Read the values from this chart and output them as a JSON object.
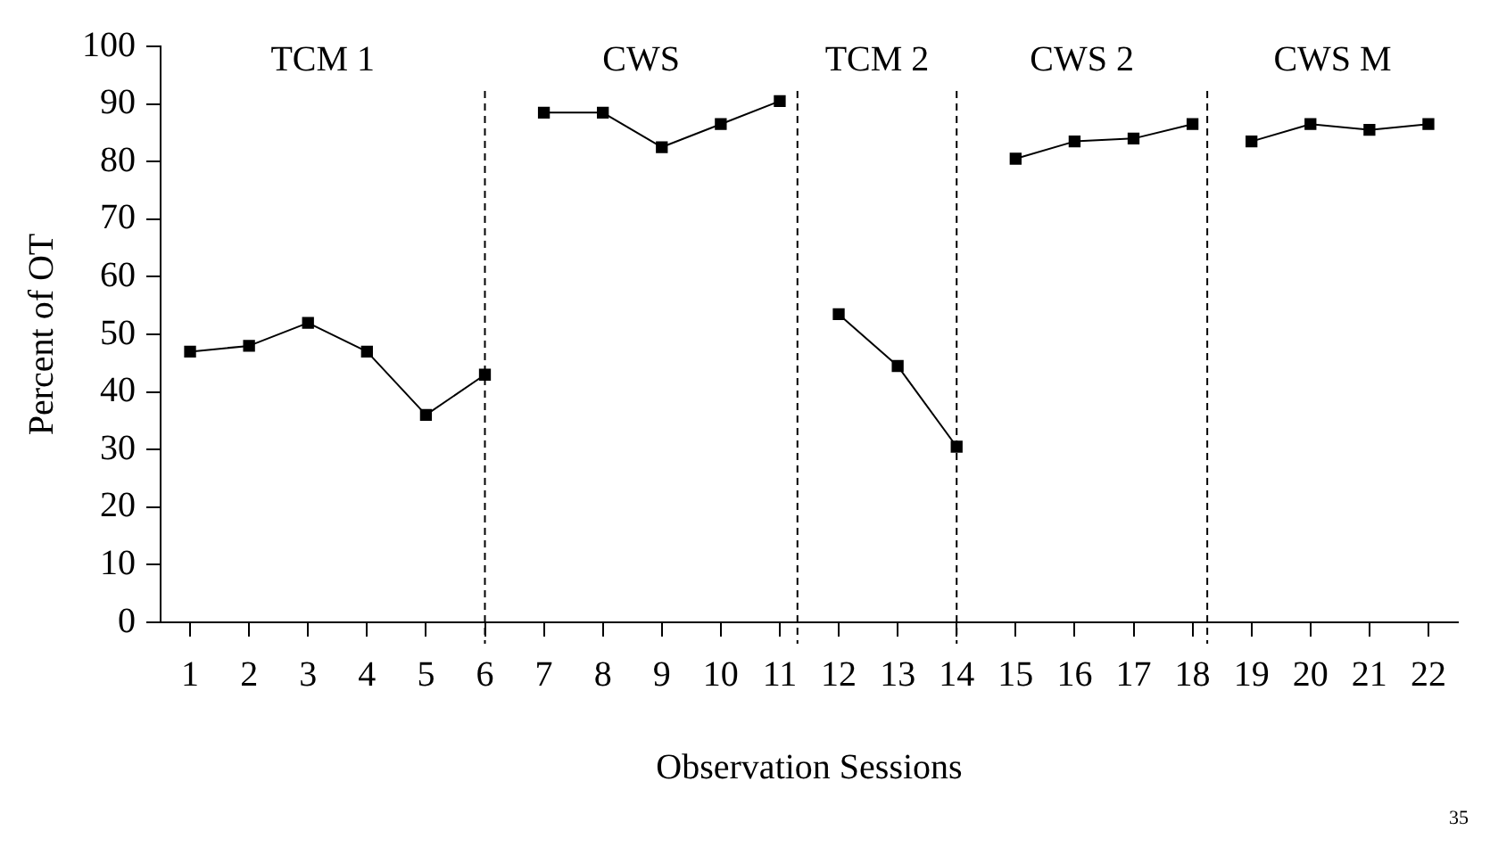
{
  "chart_data": {
    "type": "line",
    "xlabel": "Observation Sessions",
    "ylabel": "Percent of OT",
    "xlim": [
      0.5,
      22.5
    ],
    "xticks": [
      1,
      2,
      3,
      4,
      5,
      6,
      7,
      8,
      9,
      10,
      11,
      12,
      13,
      14,
      15,
      16,
      17,
      18,
      19,
      20,
      21,
      22
    ],
    "ylim": [
      0,
      100
    ],
    "yticks": [
      0,
      10,
      20,
      30,
      40,
      50,
      60,
      70,
      80,
      90,
      100
    ],
    "series": [
      {
        "color": "#000000",
        "x": [
          1,
          2,
          3,
          4,
          5,
          6
        ],
        "values": [
          47,
          48,
          52,
          47,
          36,
          43
        ]
      },
      {
        "color": "#000000",
        "x": [
          7,
          8,
          9,
          10,
          11
        ],
        "values": [
          88.5,
          88.5,
          82.5,
          86.5,
          90.5
        ]
      },
      {
        "color": "#000000",
        "x": [
          12,
          13,
          14
        ],
        "values": [
          53.5,
          44.5,
          30.5
        ]
      },
      {
        "color": "#000000",
        "x": [
          15,
          16,
          17,
          18
        ],
        "values": [
          80.5,
          83.5,
          84,
          86.5
        ]
      },
      {
        "color": "#000000",
        "x": [
          19,
          20,
          21,
          22
        ],
        "values": [
          83.5,
          86.5,
          85.5,
          86.5
        ]
      }
    ],
    "ref_lines": [
      {
        "axis": "x",
        "value": 6,
        "line_style": "dashed",
        "color": "#000000"
      },
      {
        "axis": "x",
        "value": 11.3,
        "line_style": "dashed",
        "color": "#000000"
      },
      {
        "axis": "x",
        "value": 14,
        "line_style": "dashed",
        "color": "#000000"
      },
      {
        "axis": "x",
        "value": 18.25,
        "line_style": "dashed",
        "color": "#000000"
      }
    ],
    "annotations": [
      "TCM 1",
      "CWS",
      "TCM 2",
      "CWS 2",
      "CWS M",
      "35"
    ],
    "grid": false,
    "legend": false,
    "marker": "square",
    "line_style": "solid"
  }
}
